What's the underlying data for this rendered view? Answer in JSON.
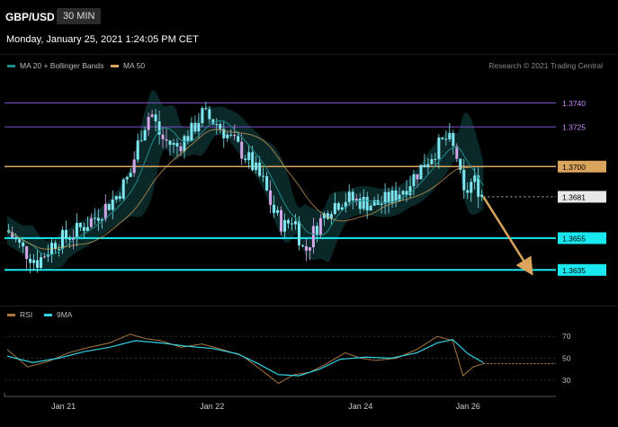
{
  "header": {
    "symbol": "GBP/USD",
    "timeframe": "30 MIN",
    "timestamp": "Monday, January 25, 2021 1:24:05 PM CET"
  },
  "legend_main": [
    {
      "label": "MA 20 + Bollinger Bands",
      "color": "#1e8c8c"
    },
    {
      "label": "MA 50",
      "color": "#d9a45b"
    }
  ],
  "credit": "Research © 2021 Trading Central",
  "legend_rsi": [
    {
      "label": "RSI",
      "color": "#a8763e"
    },
    {
      "label": "9MA",
      "color": "#33d1e0"
    }
  ],
  "colors": {
    "resistance_high": "#7b4fc9",
    "resistance_label": "#c98bff",
    "pivot": "#d9a45b",
    "support": "#19e8f0",
    "candle": "#7fe7f2",
    "candle_alt": "#d4a8e8",
    "arrow": "#d9a45b"
  },
  "chart_data": {
    "type": "candlestick",
    "instrument": "GBP/USD",
    "timeframe": "30 MIN",
    "ylim": [
      1.3625,
      1.3755
    ],
    "levels": [
      {
        "value": 1.374,
        "label": "1.3740",
        "kind": "resistance-high"
      },
      {
        "value": 1.3725,
        "label": "1.3725",
        "kind": "resistance-high"
      },
      {
        "value": 1.37,
        "label": "1.3700",
        "kind": "pivot"
      },
      {
        "value": 1.3681,
        "label": "1.3681",
        "kind": "last-price"
      },
      {
        "value": 1.3655,
        "label": "1.3655",
        "kind": "support"
      },
      {
        "value": 1.3635,
        "label": "1.3635",
        "kind": "support"
      }
    ],
    "close_path": [
      {
        "x": 0,
        "y": 1.366
      },
      {
        "x": 3,
        "y": 1.3648
      },
      {
        "x": 6,
        "y": 1.364
      },
      {
        "x": 9,
        "y": 1.3652
      },
      {
        "x": 13,
        "y": 1.3658
      },
      {
        "x": 17,
        "y": 1.3668
      },
      {
        "x": 21,
        "y": 1.368
      },
      {
        "x": 24,
        "y": 1.3695
      },
      {
        "x": 26,
        "y": 1.372
      },
      {
        "x": 28,
        "y": 1.3735
      },
      {
        "x": 30,
        "y": 1.3718
      },
      {
        "x": 33,
        "y": 1.3712
      },
      {
        "x": 36,
        "y": 1.3722
      },
      {
        "x": 38,
        "y": 1.3733
      },
      {
        "x": 41,
        "y": 1.3727
      },
      {
        "x": 44,
        "y": 1.3716
      },
      {
        "x": 47,
        "y": 1.3705
      },
      {
        "x": 50,
        "y": 1.369
      },
      {
        "x": 52,
        "y": 1.3672
      },
      {
        "x": 54,
        "y": 1.3662
      },
      {
        "x": 56,
        "y": 1.3668
      },
      {
        "x": 58,
        "y": 1.3645
      },
      {
        "x": 60,
        "y": 1.366
      },
      {
        "x": 63,
        "y": 1.3675
      },
      {
        "x": 66,
        "y": 1.368
      },
      {
        "x": 69,
        "y": 1.3678
      },
      {
        "x": 72,
        "y": 1.3676
      },
      {
        "x": 75,
        "y": 1.368
      },
      {
        "x": 78,
        "y": 1.3688
      },
      {
        "x": 81,
        "y": 1.37
      },
      {
        "x": 84,
        "y": 1.3712
      },
      {
        "x": 86,
        "y": 1.3718
      },
      {
        "x": 88,
        "y": 1.3705
      },
      {
        "x": 89,
        "y": 1.368
      },
      {
        "x": 91,
        "y": 1.3692
      },
      {
        "x": 93,
        "y": 1.3681
      }
    ],
    "forecast_arrow": [
      {
        "x": 93,
        "y": 1.3681
      },
      {
        "x": 102,
        "y": 1.3635
      }
    ],
    "x_ticks": [
      {
        "x": 11,
        "label": "Jan 21"
      },
      {
        "x": 40,
        "label": "Jan 22"
      },
      {
        "x": 69,
        "label": "Jan 24"
      },
      {
        "x": 90,
        "label": "Jan 26"
      }
    ],
    "rsi": {
      "ylim": [
        20,
        80
      ],
      "levels": [
        70,
        50,
        30
      ],
      "tick_labels": [
        "70",
        "50",
        "30"
      ],
      "last_value": 45,
      "path": [
        {
          "x": 0,
          "y": 58
        },
        {
          "x": 4,
          "y": 42
        },
        {
          "x": 8,
          "y": 47
        },
        {
          "x": 12,
          "y": 55
        },
        {
          "x": 16,
          "y": 60
        },
        {
          "x": 20,
          "y": 64
        },
        {
          "x": 24,
          "y": 72
        },
        {
          "x": 27,
          "y": 68
        },
        {
          "x": 30,
          "y": 66
        },
        {
          "x": 34,
          "y": 60
        },
        {
          "x": 38,
          "y": 63
        },
        {
          "x": 42,
          "y": 58
        },
        {
          "x": 46,
          "y": 52
        },
        {
          "x": 50,
          "y": 38
        },
        {
          "x": 53,
          "y": 27
        },
        {
          "x": 56,
          "y": 35
        },
        {
          "x": 59,
          "y": 37
        },
        {
          "x": 62,
          "y": 44
        },
        {
          "x": 66,
          "y": 55
        },
        {
          "x": 69,
          "y": 50
        },
        {
          "x": 72,
          "y": 48
        },
        {
          "x": 76,
          "y": 50
        },
        {
          "x": 80,
          "y": 58
        },
        {
          "x": 84,
          "y": 70
        },
        {
          "x": 87,
          "y": 66
        },
        {
          "x": 89,
          "y": 34
        },
        {
          "x": 91,
          "y": 42
        },
        {
          "x": 93,
          "y": 45
        }
      ],
      "ma9_path": [
        {
          "x": 0,
          "y": 52
        },
        {
          "x": 5,
          "y": 46
        },
        {
          "x": 10,
          "y": 50
        },
        {
          "x": 15,
          "y": 56
        },
        {
          "x": 20,
          "y": 60
        },
        {
          "x": 25,
          "y": 66
        },
        {
          "x": 30,
          "y": 64
        },
        {
          "x": 35,
          "y": 61
        },
        {
          "x": 40,
          "y": 59
        },
        {
          "x": 45,
          "y": 54
        },
        {
          "x": 49,
          "y": 45
        },
        {
          "x": 53,
          "y": 35
        },
        {
          "x": 57,
          "y": 34
        },
        {
          "x": 61,
          "y": 40
        },
        {
          "x": 65,
          "y": 49
        },
        {
          "x": 70,
          "y": 51
        },
        {
          "x": 75,
          "y": 50
        },
        {
          "x": 80,
          "y": 55
        },
        {
          "x": 84,
          "y": 64
        },
        {
          "x": 87,
          "y": 67
        },
        {
          "x": 90,
          "y": 54
        },
        {
          "x": 93,
          "y": 46
        }
      ]
    }
  }
}
